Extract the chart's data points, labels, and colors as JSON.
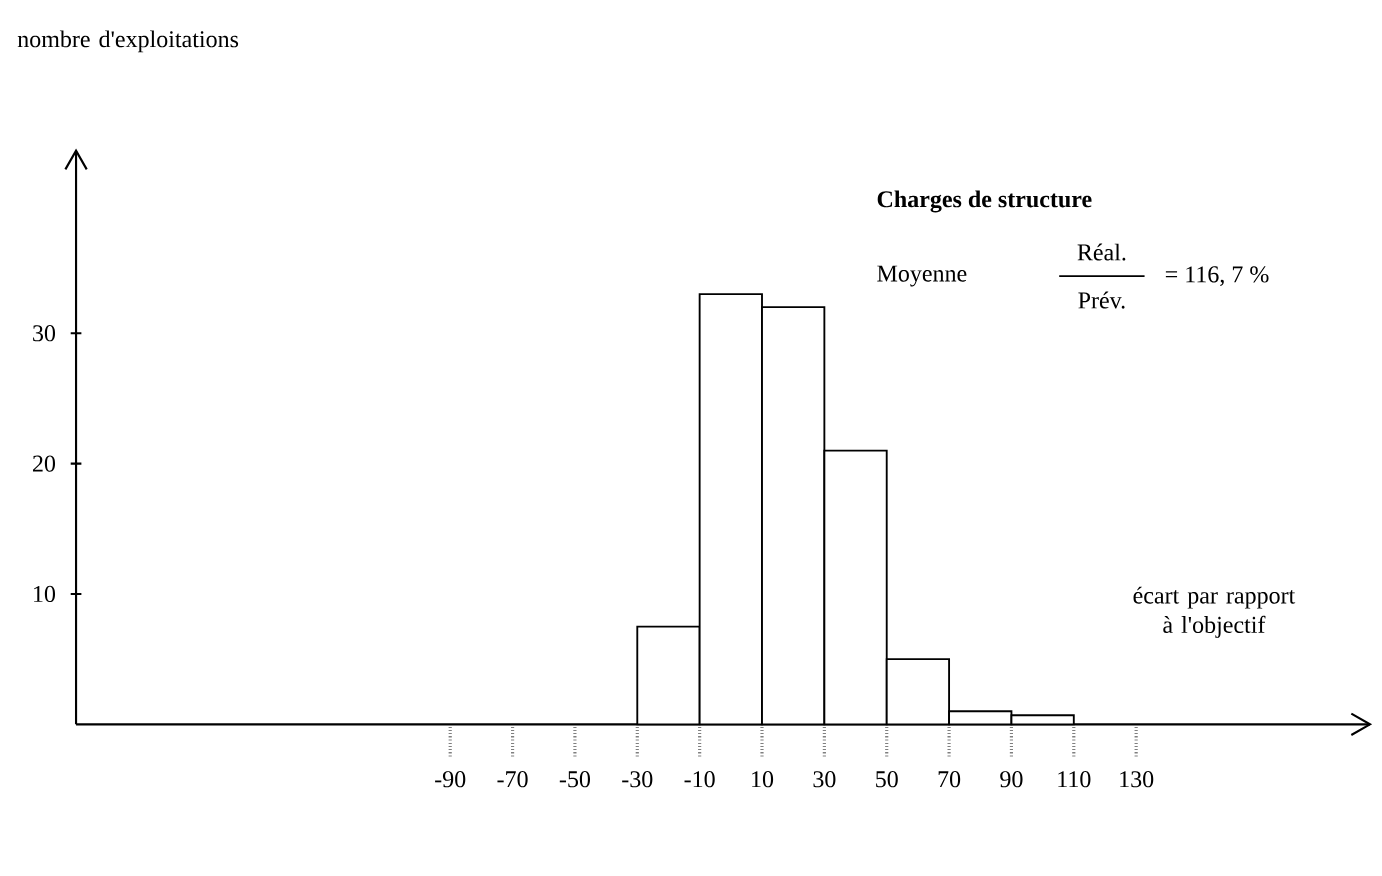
{
  "chart_data": {
    "type": "histogram",
    "xlabel": "écart par rapport à l'objectif",
    "ylabel": "nombre d'exploitations",
    "bins": [
      -30,
      -10,
      10,
      30,
      50,
      70,
      90,
      110
    ],
    "values": [
      7.5,
      33,
      32,
      21,
      5,
      1,
      0.7
    ],
    "color": "#ffffff",
    "xlim": [
      -210,
      205
    ],
    "ylim": [
      0,
      44
    ],
    "xticks": [
      -90,
      -70,
      -50,
      -30,
      -10,
      10,
      30,
      50,
      70,
      90,
      110,
      130
    ],
    "yticks": [
      10,
      20,
      30
    ],
    "grid": false,
    "annotations": [
      "Charges de structure",
      "Moyenne",
      "Réal.",
      "Prév.",
      "= 116, 7 %"
    ]
  }
}
